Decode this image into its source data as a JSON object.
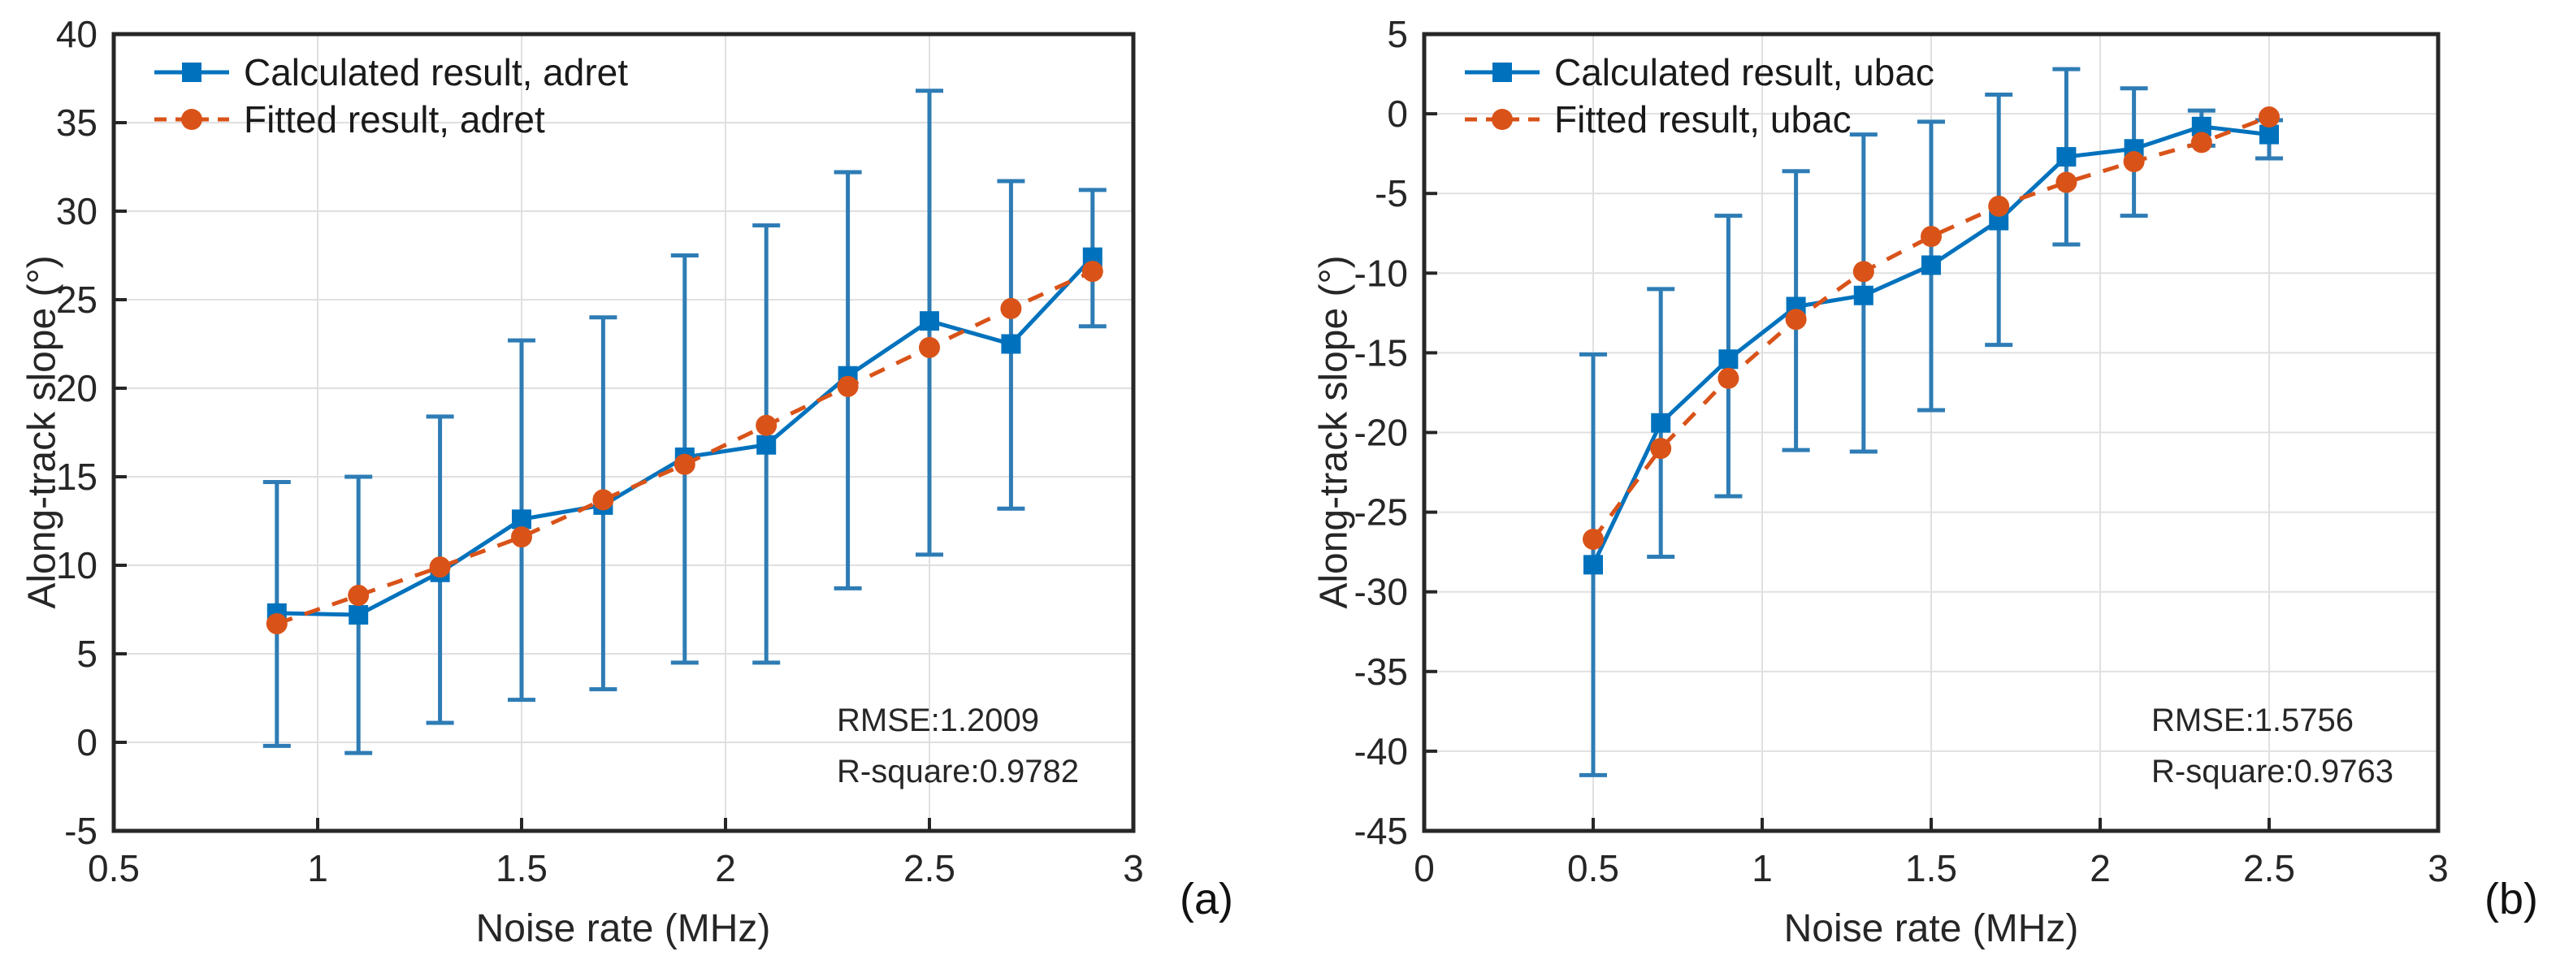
{
  "colors": {
    "series_blue": "#0072BD",
    "series_orange": "#D95319",
    "errorbar_blue": "#2E7CB5",
    "grid": "#E0E0E0",
    "axis": "#262626",
    "text": "#262626"
  },
  "chart_data": [
    {
      "type": "line",
      "panel_label": "(a)",
      "xlabel": "Noise rate (MHz)",
      "ylabel": "Along-track slope (°)",
      "xlim": [
        0.5,
        3
      ],
      "ylim": [
        -5,
        40
      ],
      "xticks": [
        0.5,
        1,
        1.5,
        2,
        2.5,
        3
      ],
      "yticks": [
        -5,
        0,
        5,
        10,
        15,
        20,
        25,
        30,
        35,
        40
      ],
      "grid": true,
      "legend_position": "top-left",
      "annotation": [
        "RMSE:1.2009",
        "R-square:0.9782"
      ],
      "x": [
        0.9,
        1.1,
        1.3,
        1.5,
        1.7,
        1.9,
        2.1,
        2.3,
        2.5,
        2.7,
        2.9
      ],
      "series": [
        {
          "name": "Calculated result, adret",
          "marker": "square",
          "line_style": "solid",
          "color": "#0072BD",
          "errorbar_color": "#2E7CB5",
          "values": [
            7.3,
            7.2,
            9.6,
            12.6,
            13.4,
            16.1,
            16.8,
            20.7,
            23.8,
            22.5,
            27.4
          ],
          "err_low": [
            -0.2,
            -0.6,
            1.1,
            2.4,
            3.0,
            4.5,
            4.5,
            8.7,
            10.6,
            13.2,
            23.5
          ],
          "err_high": [
            14.7,
            15.0,
            18.4,
            22.7,
            24.0,
            27.5,
            29.2,
            32.2,
            36.8,
            31.7,
            31.2
          ]
        },
        {
          "name": "Fitted result, adret",
          "marker": "circle",
          "line_style": "dashed",
          "color": "#D95319",
          "values": [
            6.7,
            8.3,
            9.9,
            11.6,
            13.7,
            15.7,
            17.9,
            20.1,
            22.3,
            24.5,
            26.6
          ]
        }
      ]
    },
    {
      "type": "line",
      "panel_label": "(b)",
      "xlabel": "Noise rate (MHz)",
      "ylabel": "Along-track slope (°)",
      "xlim": [
        0,
        3
      ],
      "ylim": [
        -45,
        5
      ],
      "xticks": [
        0,
        0.5,
        1,
        1.5,
        2,
        2.5,
        3
      ],
      "yticks": [
        -45,
        -40,
        -35,
        -30,
        -25,
        -20,
        -15,
        -10,
        -5,
        0,
        5
      ],
      "grid": true,
      "legend_position": "top-left",
      "annotation": [
        "RMSE:1.5756",
        "R-square:0.9763"
      ],
      "x": [
        0.5,
        0.7,
        0.9,
        1.1,
        1.3,
        1.5,
        1.7,
        1.9,
        2.1,
        2.3,
        2.5
      ],
      "series": [
        {
          "name": "Calculated result, ubac",
          "marker": "square",
          "line_style": "solid",
          "color": "#0072BD",
          "errorbar_color": "#2E7CB5",
          "values": [
            -28.3,
            -19.4,
            -15.4,
            -12.1,
            -11.4,
            -9.5,
            -6.7,
            -2.7,
            -2.2,
            -0.8,
            -1.3
          ],
          "err_low": [
            -41.5,
            -27.8,
            -24.0,
            -21.1,
            -21.2,
            -18.6,
            -14.5,
            -8.2,
            -6.4,
            -2.0,
            -2.8
          ],
          "err_high": [
            -15.1,
            -11.0,
            -6.4,
            -3.6,
            -1.3,
            -0.5,
            1.2,
            2.8,
            1.6,
            0.2,
            -0.4
          ]
        },
        {
          "name": "Fitted result, ubac",
          "marker": "circle",
          "line_style": "dashed",
          "color": "#D95319",
          "values": [
            -26.7,
            -21.0,
            -16.6,
            -12.9,
            -9.9,
            -7.7,
            -5.8,
            -4.3,
            -3.0,
            -1.8,
            -0.2
          ]
        }
      ]
    }
  ]
}
